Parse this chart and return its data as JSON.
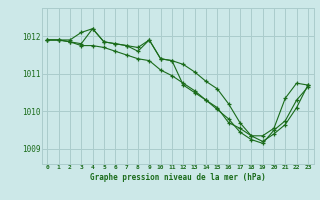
{
  "title": "Graphe pression niveau de la mer (hPa)",
  "bg_color": "#cce8e8",
  "grid_color": "#aacccc",
  "line_color": "#1a6b1a",
  "x_labels": [
    "0",
    "1",
    "2",
    "3",
    "4",
    "5",
    "6",
    "7",
    "8",
    "9",
    "10",
    "11",
    "12",
    "13",
    "14",
    "15",
    "16",
    "17",
    "18",
    "19",
    "20",
    "21",
    "22",
    "23"
  ],
  "ylim": [
    1008.6,
    1012.75
  ],
  "yticks": [
    1009,
    1010,
    1011,
    1012
  ],
  "series1": [
    1011.9,
    1011.9,
    1011.9,
    1012.1,
    1012.2,
    1011.85,
    1011.8,
    1011.75,
    1011.7,
    1011.9,
    1011.4,
    1011.35,
    1011.25,
    1011.05,
    1010.8,
    1010.6,
    1010.2,
    1009.7,
    1009.35,
    1009.35,
    1009.55,
    1010.35,
    1010.75,
    1010.7
  ],
  "series2": [
    1011.9,
    1011.9,
    1011.85,
    1011.75,
    1011.75,
    1011.7,
    1011.6,
    1011.5,
    1011.4,
    1011.35,
    1011.1,
    1010.95,
    1010.75,
    1010.55,
    1010.3,
    1010.05,
    1009.8,
    1009.45,
    1009.25,
    1009.15,
    1009.5,
    1009.75,
    1010.3,
    1010.65
  ],
  "series3": [
    1011.9,
    1011.9,
    1011.85,
    1011.8,
    1012.2,
    1011.85,
    1011.8,
    1011.75,
    1011.6,
    1011.9,
    1011.4,
    1011.35,
    1010.7,
    1010.5,
    1010.3,
    1010.1,
    1009.7,
    1009.55,
    1009.35,
    1009.2,
    1009.4,
    1009.65,
    1010.1,
    1010.7
  ]
}
